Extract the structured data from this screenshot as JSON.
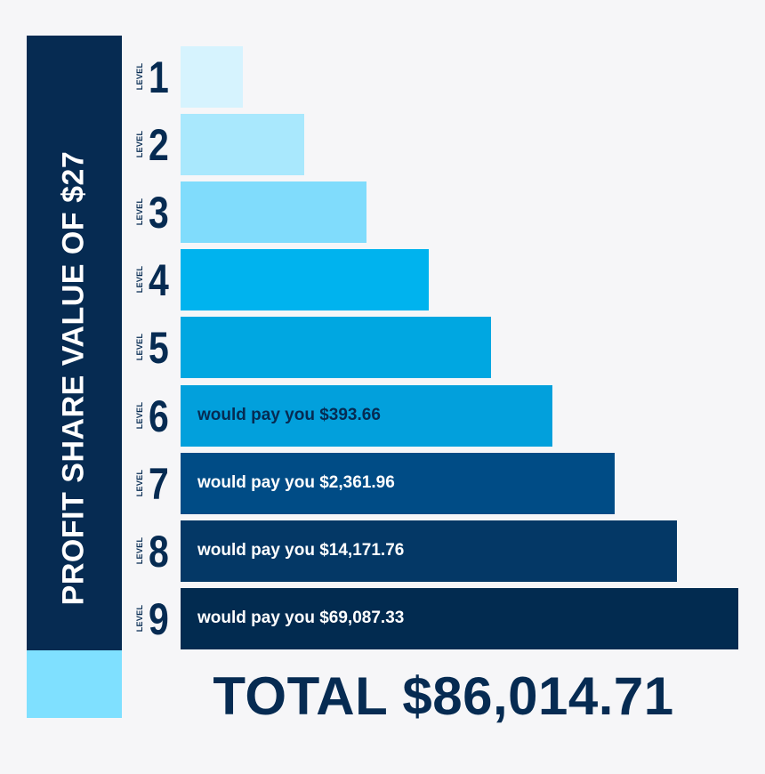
{
  "side_title": "PROFIT SHARE VALUE OF $27",
  "total": "TOTAL $86,014.71",
  "level_word": "LEVEL",
  "chart_data": {
    "type": "bar",
    "orientation": "horizontal",
    "categories": [
      "1",
      "2",
      "3",
      "4",
      "5",
      "6",
      "7",
      "8",
      "9"
    ],
    "values": [
      1,
      2,
      3,
      4,
      5,
      6,
      7,
      8,
      9
    ],
    "bar_labels": [
      "",
      "",
      "",
      "",
      "",
      "would pay you $393.66",
      "would pay you $2,361.96",
      "would pay you $14,171.76",
      "would pay you $69,087.33"
    ],
    "colors": [
      "#d6f3fe",
      "#a9e8fd",
      "#80dcfc",
      "#00b3ee",
      "#00a7e1",
      "#02a0dc",
      "#004c86",
      "#043866",
      "#022b50"
    ],
    "label_colors": [
      "",
      "",
      "",
      "",
      "",
      "#062b52",
      "#ffffff",
      "#ffffff",
      "#ffffff"
    ],
    "xlim": [
      0,
      9
    ]
  }
}
